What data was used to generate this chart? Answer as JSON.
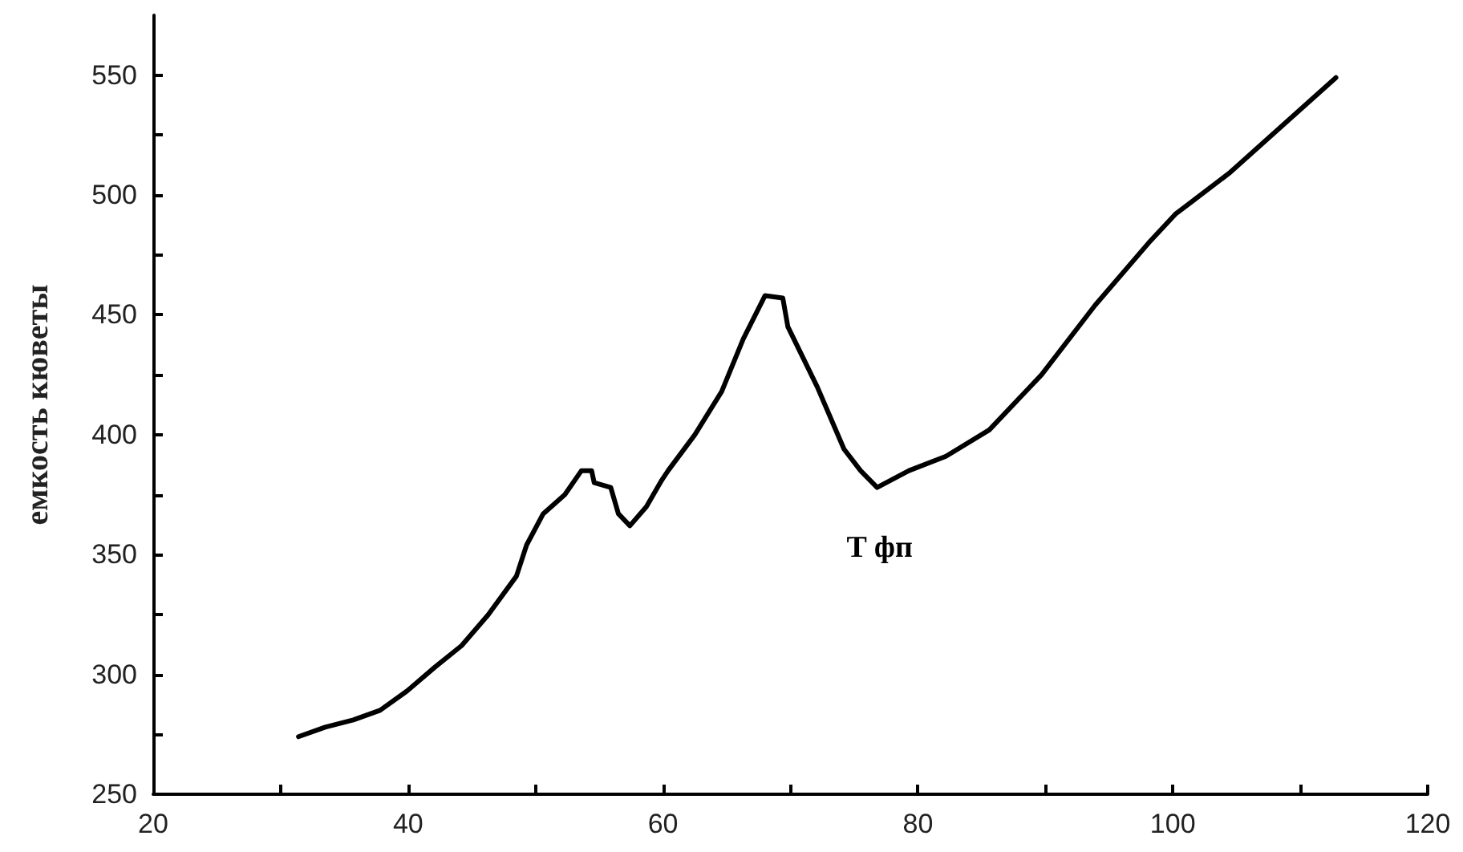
{
  "chart_data": {
    "type": "line",
    "ylabel": "емкость кюветы",
    "x": [
      31.4,
      33.5,
      35.7,
      37.8,
      39.9,
      42.1,
      44.2,
      46.3,
      48.5,
      49.3,
      50.6,
      52.3,
      53.6,
      54.4,
      54.6,
      55.9,
      56.5,
      57.4,
      58.7,
      59.9,
      60.4,
      62.5,
      64.6,
      66.3,
      68,
      69.4,
      69.8,
      72.1,
      74.2,
      75.5,
      76.8,
      79.3,
      82.2,
      85.6,
      89.7,
      93.9,
      98.1,
      100.2,
      104.4,
      108.6,
      112.8
    ],
    "series": [
      {
        "color": "#000000",
        "values": [
          274,
          278,
          281,
          285,
          293,
          303,
          312,
          325,
          341,
          354,
          367,
          375,
          385,
          385,
          380,
          378,
          367,
          362,
          370,
          381,
          385,
          400,
          418,
          440,
          458,
          457,
          445,
          420,
          394,
          385,
          378,
          385,
          391,
          402,
          425,
          454,
          480,
          492,
          509,
          529,
          549
        ]
      }
    ],
    "xlim": [
      20,
      120
    ],
    "ylim": [
      250,
      575
    ],
    "xticks": [
      20,
      {
        "value": 30,
        "label": null
      },
      40,
      {
        "value": 50,
        "label": null
      },
      60,
      {
        "value": 70,
        "label": null
      },
      80,
      {
        "value": 90,
        "label": null
      },
      100,
      {
        "value": 110,
        "label": null
      },
      120
    ],
    "yticks": [
      250,
      {
        "value": 275,
        "label": null
      },
      300,
      {
        "value": 325,
        "label": null
      },
      350,
      {
        "value": 375,
        "label": null
      },
      400,
      {
        "value": 425,
        "label": null
      },
      450,
      {
        "value": 475,
        "label": null
      },
      500,
      {
        "value": 525,
        "label": null
      },
      550
    ],
    "annotations": [
      {
        "text": "T фп",
        "x": 77,
        "y": 378
      }
    ],
    "grid": false,
    "marker": "none",
    "line_style": "solid"
  }
}
